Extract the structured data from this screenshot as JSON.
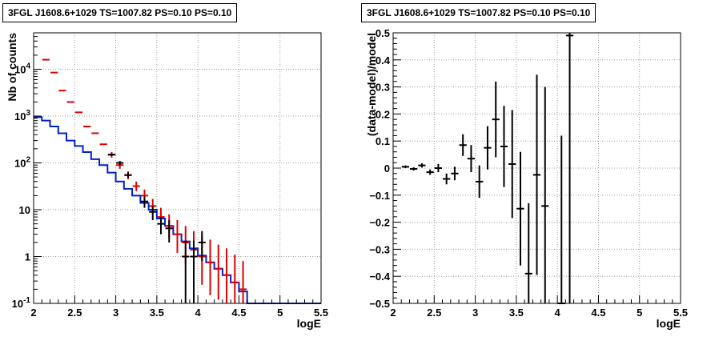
{
  "panels": [
    {
      "title": "3FGL J1608.6+1029 TS=1007.82 PS=0.10 PS=0.10"
    },
    {
      "title": "3FGL J1608.6+1029 TS=1007.82 PS=0.10 PS=0.10"
    }
  ],
  "colors": {
    "data": "#000000",
    "sum": "#dd0000",
    "model": "#0022cc",
    "grid": "#9a9a9a",
    "axis": "#000000"
  },
  "chart_data": [
    {
      "type": "line",
      "title": "3FGL J1608.6+1029 TS=1007.82 PS=0.10 PS=0.10",
      "xlabel": "logE",
      "ylabel": "Nb of counts",
      "xlim": [
        2,
        5.5
      ],
      "ylim": [
        0.1,
        60000
      ],
      "yscale": "log",
      "grid": true,
      "xticks": [
        "2",
        "2.5",
        "3",
        "3.5",
        "4",
        "4.5",
        "5",
        "5.5"
      ],
      "yticks": [
        {
          "value": 0.1,
          "base": "10",
          "exp": "-1"
        },
        {
          "value": 1,
          "base": "1",
          "exp": ""
        },
        {
          "value": 10,
          "base": "10",
          "exp": ""
        },
        {
          "value": 100,
          "base": "10",
          "exp": "2"
        },
        {
          "value": 1000,
          "base": "10",
          "exp": "3"
        },
        {
          "value": 10000,
          "base": "10",
          "exp": "4"
        }
      ],
      "model_step": {
        "name": "model",
        "edges": [
          2.0,
          2.1,
          2.2,
          2.3,
          2.4,
          2.5,
          2.6,
          2.7,
          2.8,
          2.9,
          3.0,
          3.1,
          3.2,
          3.3,
          3.4,
          3.5,
          3.6,
          3.7,
          3.8,
          3.9,
          4.0,
          4.1,
          4.2,
          4.3,
          4.4,
          4.5,
          4.6,
          4.7,
          4.8,
          4.9,
          5.0,
          5.1,
          5.2,
          5.3,
          5.4,
          5.5
        ],
        "values": [
          950,
          800,
          600,
          430,
          300,
          230,
          170,
          120,
          90,
          62,
          40,
          28,
          20,
          14,
          10,
          6.5,
          4.5,
          3.0,
          2.1,
          1.5,
          1.05,
          0.75,
          0.55,
          0.4,
          0.28,
          0.18,
          0.1,
          0.1,
          0.1,
          0.1,
          0.1,
          0.1,
          0.1,
          0.1,
          0.1
        ]
      },
      "series": [
        {
          "name": "sum",
          "points": [
            {
              "x": 2.15,
              "y": 16000,
              "lo": 16000,
              "hi": 16000
            },
            {
              "x": 2.25,
              "y": 8500,
              "lo": 8500,
              "hi": 8500
            },
            {
              "x": 2.35,
              "y": 3500,
              "lo": 3500,
              "hi": 3500
            },
            {
              "x": 2.45,
              "y": 2000,
              "lo": 2000,
              "hi": 2000
            },
            {
              "x": 2.55,
              "y": 1200,
              "lo": 1200,
              "hi": 1200
            },
            {
              "x": 2.65,
              "y": 600,
              "lo": 600,
              "hi": 600
            },
            {
              "x": 2.75,
              "y": 430,
              "lo": 430,
              "hi": 430
            },
            {
              "x": 2.85,
              "y": 250,
              "lo": 250,
              "hi": 250
            },
            {
              "x": 2.95,
              "y": 150,
              "lo": 130,
              "hi": 170
            },
            {
              "x": 3.05,
              "y": 90,
              "lo": 75,
              "hi": 105
            },
            {
              "x": 3.15,
              "y": 55,
              "lo": 45,
              "hi": 66
            },
            {
              "x": 3.25,
              "y": 32,
              "lo": 25,
              "hi": 40
            },
            {
              "x": 3.35,
              "y": 20,
              "lo": 14,
              "hi": 27
            },
            {
              "x": 3.45,
              "y": 12,
              "lo": 8,
              "hi": 17
            },
            {
              "x": 3.55,
              "y": 7,
              "lo": 4,
              "hi": 11
            },
            {
              "x": 3.65,
              "y": 4.5,
              "lo": 2.5,
              "hi": 8
            },
            {
              "x": 3.75,
              "y": 3,
              "lo": 1.2,
              "hi": 6
            },
            {
              "x": 3.85,
              "y": 2,
              "lo": 0.7,
              "hi": 4.5
            },
            {
              "x": 3.95,
              "y": 1.4,
              "lo": 0.4,
              "hi": 3.5
            },
            {
              "x": 4.05,
              "y": 1.0,
              "lo": 0.25,
              "hi": 2.8
            },
            {
              "x": 4.15,
              "y": 0.75,
              "lo": 0.15,
              "hi": 2.3
            },
            {
              "x": 4.25,
              "y": 0.55,
              "lo": 0.12,
              "hi": 1.8
            },
            {
              "x": 4.35,
              "y": 0.4,
              "lo": 0.1,
              "hi": 1.5
            },
            {
              "x": 4.45,
              "y": 0.28,
              "lo": 0.1,
              "hi": 1.1
            },
            {
              "x": 4.55,
              "y": 0.2,
              "lo": 0.1,
              "hi": 0.8
            }
          ]
        },
        {
          "name": "data",
          "points": [
            {
              "x": 2.95,
              "y": 150,
              "lo": 140,
              "hi": 160
            },
            {
              "x": 3.05,
              "y": 100,
              "lo": 90,
              "hi": 110
            },
            {
              "x": 3.15,
              "y": 55,
              "lo": 48,
              "hi": 62
            },
            {
              "x": 3.35,
              "y": 15,
              "lo": 11,
              "hi": 19
            },
            {
              "x": 3.45,
              "y": 9,
              "lo": 6,
              "hi": 12
            },
            {
              "x": 3.55,
              "y": 5,
              "lo": 3,
              "hi": 7
            },
            {
              "x": 3.65,
              "y": 4,
              "lo": 2,
              "hi": 6
            },
            {
              "x": 3.85,
              "y": 1,
              "lo": 0.1,
              "hi": 2.2
            },
            {
              "x": 3.95,
              "y": 1,
              "lo": 0.1,
              "hi": 2.2
            },
            {
              "x": 4.05,
              "y": 2,
              "lo": 0.8,
              "hi": 3.5
            }
          ]
        }
      ]
    },
    {
      "type": "scatter",
      "title": "3FGL J1608.6+1029 TS=1007.82 PS=0.10 PS=0.10",
      "xlabel": "logE",
      "ylabel": "(data-model)/model",
      "xlim": [
        2,
        5.5
      ],
      "ylim": [
        -0.5,
        0.5
      ],
      "grid": true,
      "xticks": [
        "2",
        "2.5",
        "3",
        "3.5",
        "4",
        "4.5",
        "5",
        "5.5"
      ],
      "yticks": [
        "−0.5",
        "−0.4",
        "−0.3",
        "−0.2",
        "−0.1",
        "0",
        "0.1",
        "0.2",
        "0.3",
        "0.4",
        "0.5"
      ],
      "series": [
        {
          "name": "residuals",
          "points": [
            {
              "x": 2.15,
              "y": 0.005,
              "err": 0.005
            },
            {
              "x": 2.25,
              "y": -0.003,
              "err": 0.006
            },
            {
              "x": 2.35,
              "y": 0.01,
              "err": 0.008
            },
            {
              "x": 2.45,
              "y": -0.015,
              "err": 0.01
            },
            {
              "x": 2.55,
              "y": 0.0,
              "err": 0.015
            },
            {
              "x": 2.65,
              "y": -0.04,
              "err": 0.02
            },
            {
              "x": 2.75,
              "y": -0.02,
              "err": 0.025
            },
            {
              "x": 2.85,
              "y": 0.085,
              "err": 0.04
            },
            {
              "x": 2.95,
              "y": 0.035,
              "err": 0.05
            },
            {
              "x": 3.05,
              "y": -0.05,
              "err": 0.06
            },
            {
              "x": 3.15,
              "y": 0.075,
              "err": 0.08
            },
            {
              "x": 3.25,
              "y": 0.18,
              "err": 0.14
            },
            {
              "x": 3.35,
              "y": 0.08,
              "err": 0.15
            },
            {
              "x": 3.45,
              "y": 0.015,
              "err": 0.2
            },
            {
              "x": 3.55,
              "y": -0.15,
              "err": 0.21
            },
            {
              "x": 3.65,
              "y": -0.39,
              "err": 0.26
            },
            {
              "x": 3.75,
              "y": -0.025,
              "err": 0.37
            },
            {
              "x": 3.85,
              "y": -0.14,
              "err": 0.44
            },
            {
              "x": 4.05,
              "y": -0.5,
              "err": 0.62
            },
            {
              "x": 4.15,
              "y": 0.49,
              "err": 0.99
            }
          ]
        }
      ]
    }
  ]
}
